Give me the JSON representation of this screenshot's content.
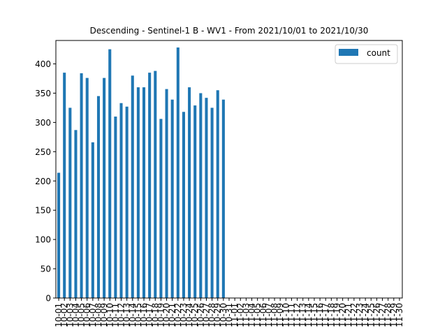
{
  "chart_data": {
    "type": "bar",
    "title": "Descending - Sentinel-1 B - WV1 - From 2021/10/01 to 2021/10/30",
    "xlabel": "",
    "ylabel": "",
    "ylim": [
      0,
      440
    ],
    "yticks": [
      0,
      50,
      100,
      150,
      200,
      250,
      300,
      350,
      400
    ],
    "legend": "upper right",
    "grid": false,
    "bar_color": "#1f77b4",
    "categories": [
      "10-01",
      "10-02",
      "10-03",
      "10-04",
      "10-05",
      "10-06",
      "10-07",
      "10-08",
      "10-09",
      "10-10",
      "10-11",
      "10-12",
      "10-13",
      "10-14",
      "10-15",
      "10-16",
      "10-17",
      "10-18",
      "10-19",
      "10-20",
      "10-21",
      "10-22",
      "10-23",
      "10-24",
      "10-25",
      "10-26",
      "10-27",
      "10-28",
      "10-29",
      "10-30",
      "10-31",
      "11-01",
      "11-02",
      "11-03",
      "11-04",
      "11-05",
      "11-06",
      "11-07",
      "11-08",
      "11-09",
      "11-10",
      "11-11",
      "11-12",
      "11-13",
      "11-14",
      "11-15",
      "11-16",
      "11-17",
      "11-18",
      "11-19",
      "11-20",
      "11-21",
      "11-22",
      "11-23",
      "11-24",
      "11-25",
      "11-26",
      "11-27",
      "11-28",
      "11-29",
      "11-30"
    ],
    "series": [
      {
        "name": "count",
        "values": [
          214,
          385,
          325,
          287,
          384,
          376,
          266,
          345,
          376,
          425,
          310,
          333,
          327,
          380,
          360,
          360,
          385,
          388,
          306,
          357,
          339,
          428,
          318,
          360,
          329,
          350,
          342,
          325,
          355,
          339,
          0,
          0,
          0,
          0,
          0,
          0,
          0,
          0,
          0,
          0,
          0,
          0,
          0,
          0,
          0,
          0,
          0,
          0,
          0,
          0,
          0,
          0,
          0,
          0,
          0,
          0,
          0,
          0,
          0,
          0,
          0
        ]
      }
    ]
  }
}
